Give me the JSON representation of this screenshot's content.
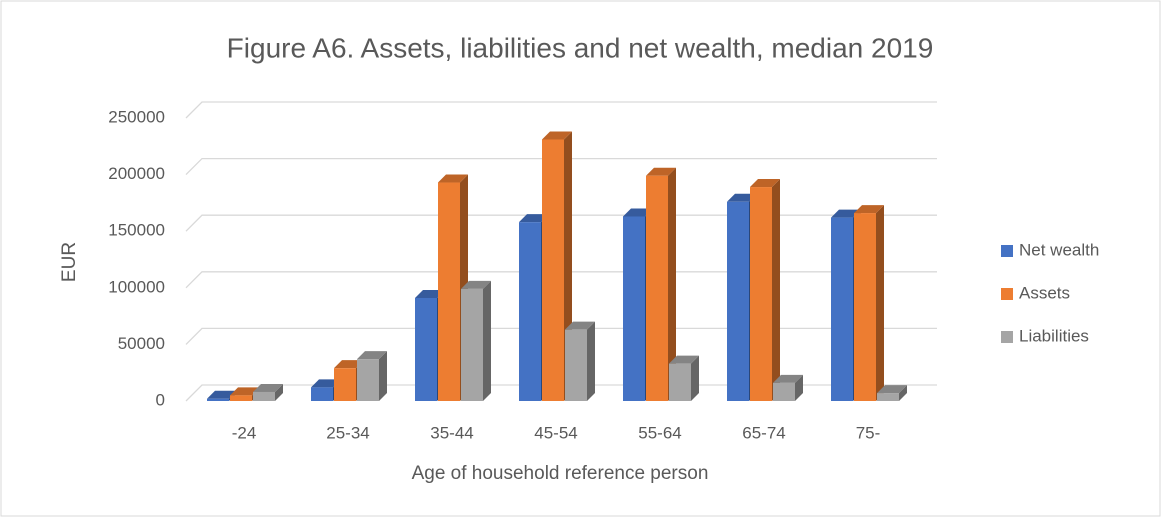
{
  "chart_data": {
    "type": "bar3d",
    "title": "Figure A6. Assets, liabilities and net wealth, median 2019",
    "x_label": "Age of household reference person",
    "y_label": "EUR",
    "categories": [
      "-24",
      "25-34",
      "35-44",
      "45-54",
      "55-64",
      "65-74",
      "75-"
    ],
    "series": [
      {
        "name": "Net wealth",
        "color": "#4472c4",
        "values": [
          2000,
          12000,
          91000,
          158000,
          163000,
          176000,
          162000
        ]
      },
      {
        "name": "Assets",
        "color": "#ed7d31",
        "values": [
          5000,
          29000,
          193000,
          231000,
          199000,
          189000,
          166000
        ]
      },
      {
        "name": "Liabilities",
        "color": "#a5a5a5",
        "values": [
          8000,
          37000,
          99000,
          63000,
          33000,
          16000,
          7000
        ]
      }
    ],
    "ylim": [
      0,
      250000
    ],
    "yticks": [
      0,
      50000,
      100000,
      150000,
      200000,
      250000
    ],
    "grid": true,
    "legend": "right"
  }
}
